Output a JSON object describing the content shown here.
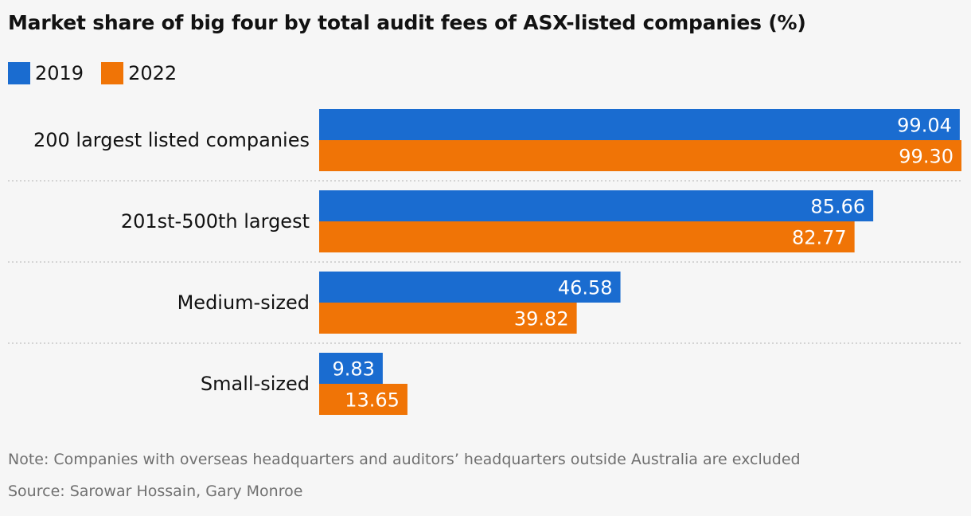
{
  "colors": {
    "s2019": "#1a6cd0",
    "s2022": "#f07406",
    "grid": "#c8c8c8",
    "label": "#121212",
    "value": "#ffffff"
  },
  "chart_data": {
    "type": "bar",
    "orientation": "horizontal",
    "title": "Market share of big four by total audit fees of ASX-listed companies (%)",
    "categories": [
      "200 largest listed companies",
      "201st-500th largest",
      "Medium-sized",
      "Small-sized"
    ],
    "series": [
      {
        "name": "2019",
        "values": [
          99.04,
          85.66,
          46.58,
          9.83
        ],
        "labels": [
          "99.04",
          "85.66",
          "46.58",
          "9.83"
        ]
      },
      {
        "name": "2022",
        "values": [
          99.3,
          82.77,
          39.82,
          13.65
        ],
        "labels": [
          "99.30",
          "82.77",
          "39.82",
          "13.65"
        ]
      }
    ],
    "xlim": [
      0,
      100
    ],
    "grid": false,
    "legend": "top-left",
    "data_labels": "inside-end"
  },
  "note": "Note: Companies with overseas headquarters and auditors’ headquarters outside Australia are excluded",
  "source": "Source: Sarowar Hossain, Gary Monroe"
}
